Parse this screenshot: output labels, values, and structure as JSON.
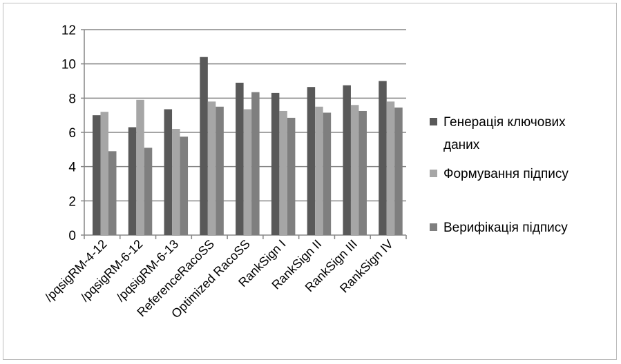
{
  "chart_data": {
    "type": "bar",
    "categories": [
      "/pqsigRM-4-12",
      "/pqsigRM-6-12",
      "/pqsigRM-6-13",
      "ReferenceRacoSS",
      "Optimized RacoSS",
      "RankSign I",
      "RankSign II",
      "RankSign III",
      "RankSign IV"
    ],
    "series": [
      {
        "name": "Генерація ключових даних",
        "values": [
          7.0,
          6.3,
          7.35,
          10.4,
          8.9,
          8.3,
          8.65,
          8.75,
          9.0
        ]
      },
      {
        "name": "Формування підпису",
        "values": [
          7.2,
          7.9,
          6.2,
          7.8,
          7.35,
          7.25,
          7.5,
          7.6,
          7.8
        ]
      },
      {
        "name": "Верифікація підпису",
        "values": [
          4.9,
          5.1,
          5.75,
          7.5,
          8.35,
          6.85,
          7.15,
          7.25,
          7.45
        ]
      }
    ],
    "colors": [
      "#595959",
      "#a6a6a6",
      "#7f7f7f"
    ],
    "title": "",
    "xlabel": "",
    "ylabel": "",
    "ylim": [
      0,
      12
    ],
    "yticks": [
      "0",
      "2",
      "4",
      "6",
      "8",
      "10",
      "12"
    ],
    "grid": true,
    "legend": "right",
    "legend_lines": [
      [
        "Генерація ключових",
        "даних"
      ],
      [
        "Формування підпису"
      ],
      [
        "Верифікація підпису"
      ]
    ]
  }
}
